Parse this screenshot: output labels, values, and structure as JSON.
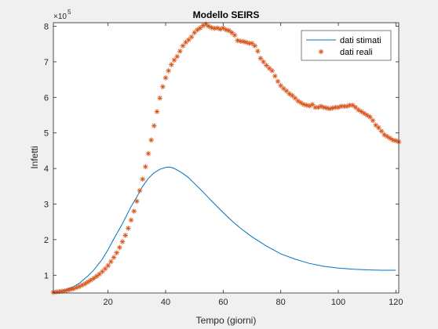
{
  "chart_data": {
    "type": "line",
    "title": "Modello SEIRS",
    "xlabel": "Tempo (giorni)",
    "ylabel": "Infetti",
    "exponent_base": "×10",
    "exponent_power": "5",
    "xlim": [
      1,
      121
    ],
    "ylim": [
      0.5,
      8.1
    ],
    "xticks": [
      20,
      40,
      60,
      80,
      100,
      120
    ],
    "yticks": [
      1,
      2,
      3,
      4,
      5,
      6,
      7,
      8
    ],
    "grid": false,
    "legend_position": "top-right",
    "series": [
      {
        "name": "dati stimati",
        "style": "line",
        "color": "#0072BD",
        "x": [
          1,
          5,
          8,
          10,
          13,
          15,
          18,
          20,
          22,
          25,
          28,
          30,
          32,
          34,
          36,
          38,
          40,
          41,
          42,
          43,
          44,
          46,
          48,
          50,
          53,
          55,
          58,
          60,
          63,
          66,
          70,
          75,
          80,
          85,
          90,
          95,
          100,
          105,
          110,
          115,
          120
        ],
        "y": [
          0.5,
          0.58,
          0.68,
          0.77,
          0.98,
          1.14,
          1.45,
          1.72,
          2.02,
          2.45,
          2.93,
          3.2,
          3.5,
          3.72,
          3.88,
          3.98,
          4.03,
          4.04,
          4.03,
          4.0,
          3.96,
          3.86,
          3.74,
          3.58,
          3.34,
          3.17,
          2.92,
          2.76,
          2.53,
          2.32,
          2.08,
          1.82,
          1.6,
          1.45,
          1.33,
          1.25,
          1.2,
          1.17,
          1.15,
          1.14,
          1.14
        ]
      },
      {
        "name": "dati reali",
        "style": "markers",
        "marker": "*",
        "color": "#D95319",
        "x": [
          1,
          2,
          3,
          4,
          5,
          6,
          7,
          8,
          9,
          10,
          11,
          12,
          13,
          14,
          15,
          16,
          17,
          18,
          19,
          20,
          21,
          22,
          23,
          24,
          25,
          26,
          27,
          28,
          29,
          30,
          31,
          32,
          33,
          34,
          35,
          36,
          37,
          38,
          39,
          40,
          41,
          42,
          43,
          44,
          45,
          46,
          47,
          48,
          49,
          50,
          51,
          52,
          53,
          54,
          55,
          56,
          57,
          58,
          59,
          60,
          61,
          62,
          63,
          64,
          65,
          66,
          67,
          68,
          69,
          70,
          71,
          72,
          73,
          74,
          75,
          76,
          77,
          78,
          79,
          80,
          81,
          82,
          83,
          84,
          85,
          86,
          87,
          88,
          89,
          90,
          91,
          92,
          93,
          94,
          95,
          96,
          97,
          98,
          99,
          100,
          101,
          102,
          103,
          104,
          105,
          106,
          107,
          108,
          109,
          110,
          111,
          112,
          113,
          114,
          115,
          116,
          117,
          118,
          119,
          120,
          121
        ],
        "y": [
          0.52,
          0.53,
          0.54,
          0.55,
          0.56,
          0.58,
          0.6,
          0.62,
          0.65,
          0.68,
          0.72,
          0.76,
          0.81,
          0.86,
          0.91,
          0.97,
          1.03,
          1.1,
          1.18,
          1.27,
          1.38,
          1.5,
          1.63,
          1.78,
          1.94,
          2.12,
          2.32,
          2.55,
          2.8,
          3.08,
          3.38,
          3.7,
          4.05,
          4.42,
          4.8,
          5.2,
          5.6,
          5.98,
          6.3,
          6.55,
          6.75,
          6.92,
          7.05,
          7.15,
          7.3,
          7.45,
          7.55,
          7.62,
          7.7,
          7.82,
          7.9,
          7.95,
          8.02,
          8.06,
          8.0,
          7.96,
          7.94,
          7.95,
          7.92,
          7.95,
          7.9,
          7.88,
          7.82,
          7.75,
          7.6,
          7.58,
          7.57,
          7.55,
          7.52,
          7.52,
          7.45,
          7.3,
          7.1,
          7.0,
          6.9,
          6.82,
          6.75,
          6.6,
          6.45,
          6.33,
          6.25,
          6.18,
          6.1,
          6.05,
          5.98,
          5.9,
          5.85,
          5.8,
          5.78,
          5.76,
          5.8,
          5.72,
          5.72,
          5.75,
          5.72,
          5.7,
          5.68,
          5.7,
          5.72,
          5.72,
          5.75,
          5.75,
          5.75,
          5.78,
          5.78,
          5.72,
          5.65,
          5.6,
          5.55,
          5.5,
          5.45,
          5.35,
          5.22,
          5.15,
          5.05,
          4.95,
          4.9,
          4.85,
          4.8,
          4.78,
          4.75
        ]
      }
    ]
  }
}
